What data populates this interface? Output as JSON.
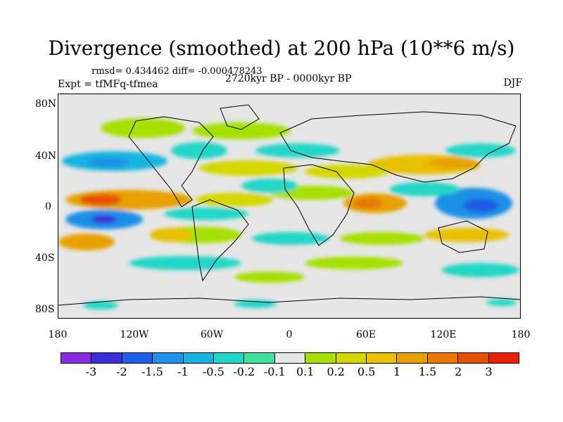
{
  "title": "Divergence (smoothed) at 200 hPa (10**6 m/s)",
  "stats": "rmsd= 0.434462 diff= -0.000478243",
  "experiment": "Expt = tfMFq-tfmea",
  "period": "2720kyr BP - 0000kyr BP",
  "season": "DJF",
  "map": {
    "latitude_labels": [
      "80N",
      "40N",
      "0",
      "40S",
      "80S"
    ],
    "longitude_labels": [
      "180",
      "120W",
      "60W",
      "0",
      "60E",
      "120E",
      "180"
    ],
    "ocean_color": "#e6e6e6",
    "coastline_color": "#000000"
  },
  "colorbar": {
    "colors": [
      "#8a2be2",
      "#3a2fd6",
      "#1e5fe6",
      "#1e90e6",
      "#15b5e0",
      "#22d6c8",
      "#3fe0a0",
      "#e6e6e6",
      "#a6e000",
      "#d4d800",
      "#e8c000",
      "#e8a000",
      "#e87800",
      "#e85000",
      "#e82000"
    ],
    "labels": [
      "-3",
      "-2",
      "-1.5",
      "-1",
      "-0.5",
      "-0.2",
      "-0.1",
      "0.1",
      "0.2",
      "0.5",
      "1",
      "1.5",
      "2",
      "3"
    ]
  }
}
